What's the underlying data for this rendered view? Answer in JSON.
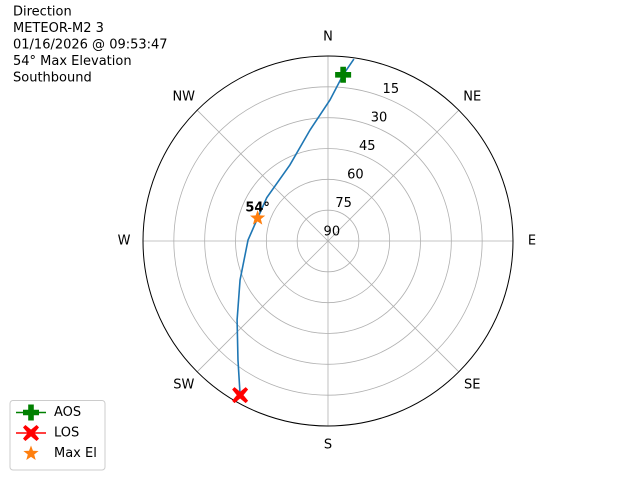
{
  "chart_data": {
    "type": "polar",
    "info_lines": [
      "Direction",
      "METEOR-M2 3",
      "01/16/2026 @ 09:53:47",
      "54° Max Elevation",
      "Southbound"
    ],
    "theta_direction": "clockwise",
    "theta_zero": "N",
    "thetaticks": [
      {
        "value": 0,
        "label": "N"
      },
      {
        "value": 45,
        "label": "NE"
      },
      {
        "value": 90,
        "label": "E"
      },
      {
        "value": 135,
        "label": "SE"
      },
      {
        "value": 180,
        "label": "S"
      },
      {
        "value": 225,
        "label": "SW"
      },
      {
        "value": 270,
        "label": "W"
      },
      {
        "value": 315,
        "label": "NW"
      }
    ],
    "rlim": [
      90,
      0
    ],
    "rticks": [
      15,
      30,
      45,
      60,
      75,
      90
    ],
    "grid": true,
    "legend": "lower left",
    "series": [
      {
        "kind": "line",
        "color": "#1f77b4",
        "x": [
          8.1,
          5.2,
          0.8,
          350.8,
          333.4,
          305.3,
          288,
          270.7,
          246.1,
          229,
          217.1,
          209.7
        ],
        "values": [
          0.6,
          8.8,
          21.4,
          35.3,
          48.6,
          53.5,
          54,
          51.1,
          43.2,
          31.4,
          17.4,
          3.7
        ]
      },
      {
        "name": "AOS",
        "kind": "point",
        "marker": "plus",
        "color": "#008000",
        "x": [
          5.2
        ],
        "values": [
          8.8
        ]
      },
      {
        "name": "LOS",
        "kind": "point",
        "marker": "x",
        "color": "#ff0000",
        "x": [
          209.7
        ],
        "values": [
          3.7
        ]
      },
      {
        "name": "Max El",
        "kind": "point",
        "marker": "star",
        "color": "#ff7f0e",
        "x": [
          288
        ],
        "values": [
          54
        ],
        "value_labels": [
          "54°"
        ]
      }
    ]
  }
}
